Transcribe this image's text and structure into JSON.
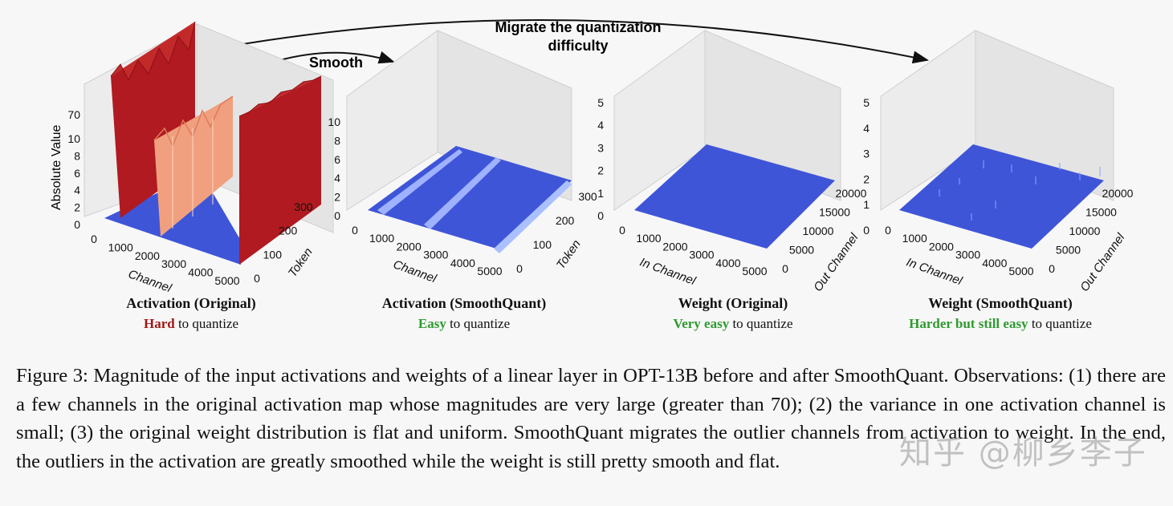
{
  "annotations": {
    "smooth": "Smooth",
    "migrate_line1": "Migrate the quantization",
    "migrate_line2": "difficulty"
  },
  "panels": [
    {
      "title": "Activation (Original)",
      "sub_emph": "Hard",
      "sub_rest": " to quantize",
      "emph_color": "#a31515",
      "zlabel": "Absolute Value",
      "zticks": [
        "0",
        "2",
        "4",
        "6",
        "8",
        "10",
        "70"
      ],
      "xlabel": "Channel",
      "xticks": [
        "0",
        "1000",
        "2000",
        "3000",
        "4000",
        "5000"
      ],
      "ylabel": "Token",
      "yticks": [
        "0",
        "100",
        "200",
        "300"
      ]
    },
    {
      "title": "Activation (SmoothQuant)",
      "sub_emph": "Easy",
      "sub_rest": " to quantize",
      "emph_color": "#2e9a2e",
      "zticks": [
        "0",
        "2",
        "4",
        "6",
        "8",
        "10"
      ],
      "xlabel": "Channel",
      "xticks": [
        "0",
        "1000",
        "2000",
        "3000",
        "4000",
        "5000"
      ],
      "ylabel": "Token",
      "yticks": [
        "0",
        "100",
        "200",
        "300"
      ]
    },
    {
      "title": "Weight (Original)",
      "sub_emph": "Very easy",
      "sub_rest": " to quantize",
      "emph_color": "#2e9a2e",
      "zticks": [
        "0",
        "1",
        "2",
        "3",
        "4",
        "5"
      ],
      "xlabel": "In Channel",
      "xticks": [
        "0",
        "1000",
        "2000",
        "3000",
        "4000",
        "5000"
      ],
      "ylabel": "Out Channel",
      "yticks": [
        "0",
        "5000",
        "10000",
        "15000",
        "20000"
      ]
    },
    {
      "title": "Weight (SmoothQuant)",
      "sub_emph": "Harder but still easy",
      "sub_rest": " to quantize",
      "emph_color": "#2e9a2e",
      "zticks": [
        "0",
        "1",
        "2",
        "3",
        "4",
        "5"
      ],
      "xlabel": "In Channel",
      "xticks": [
        "0",
        "1000",
        "2000",
        "3000",
        "4000",
        "5000"
      ],
      "ylabel": "Out Channel",
      "yticks": [
        "0",
        "5000",
        "10000",
        "15000",
        "20000"
      ]
    }
  ],
  "caption": "Figure 3: Magnitude of the input activations and weights of a linear layer in OPT-13B before and after SmoothQuant. Observations: (1) there are a few channels in the original activation map whose magnitudes are very large (greater than 70); (2) the variance in one activation channel is small; (3) the original weight distribution is flat and uniform. SmoothQuant migrates the outlier channels from activation to weight. In the end, the outliers in the activation are greatly smoothed while the weight is still pretty smooth and flat.",
  "watermark": "知乎 @柳乡李子",
  "colors": {
    "red_spike": "#b01a20",
    "orange_spike": "#f0a07e",
    "blue_floor": "#3f55d8",
    "grid": "#d5d5d5"
  }
}
